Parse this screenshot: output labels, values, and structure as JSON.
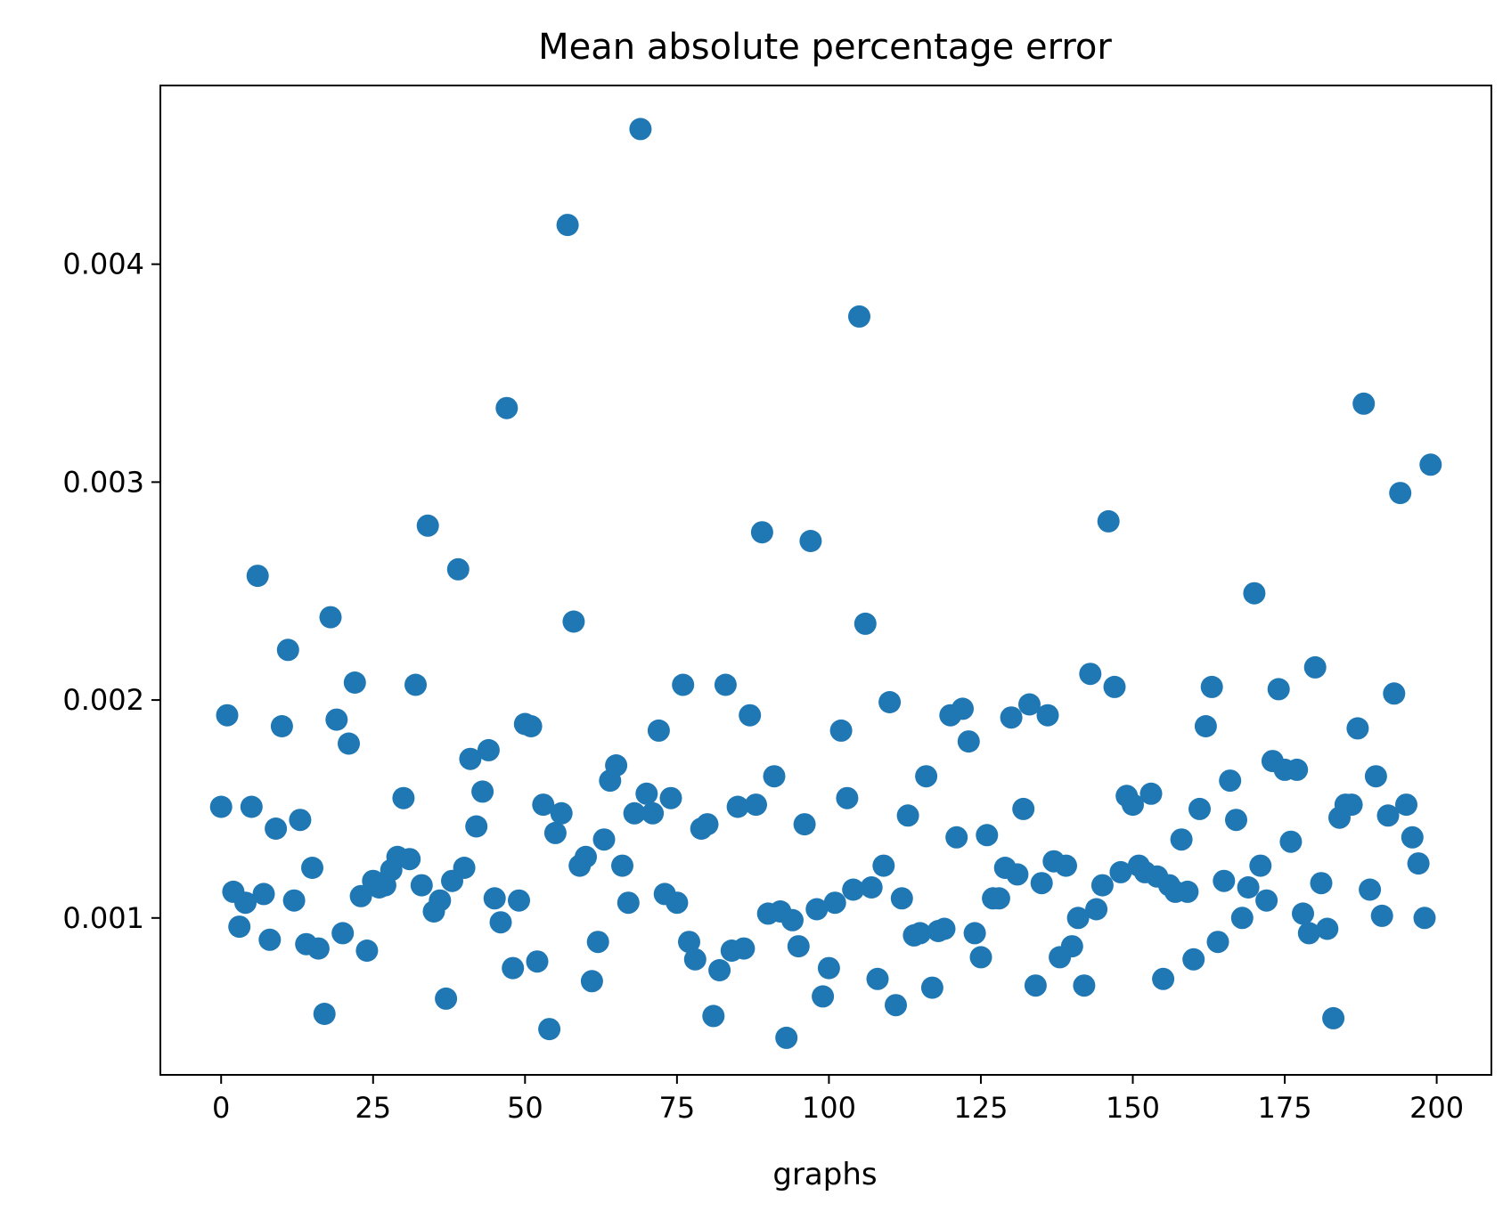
{
  "chart_data": {
    "type": "scatter",
    "title": "Mean absolute percentage error",
    "xlabel": "graphs",
    "ylabel": "",
    "xlim": [
      -10,
      209
    ],
    "ylim": [
      0.00028,
      0.00482
    ],
    "xticks": [
      0,
      25,
      50,
      75,
      100,
      125,
      150,
      175,
      200
    ],
    "xtick_labels": [
      "0",
      "25",
      "50",
      "75",
      "100",
      "125",
      "150",
      "175",
      "200"
    ],
    "yticks": [
      0.001,
      0.002,
      0.003,
      0.004
    ],
    "ytick_labels": [
      "0.001",
      "0.002",
      "0.003",
      "0.004"
    ],
    "grid": false,
    "color": "#1f77b4",
    "x": [
      0,
      1,
      2,
      3,
      4,
      5,
      6,
      7,
      8,
      9,
      10,
      11,
      12,
      13,
      14,
      15,
      16,
      17,
      18,
      19,
      20,
      21,
      22,
      23,
      24,
      25,
      26,
      27,
      28,
      29,
      30,
      31,
      32,
      33,
      34,
      35,
      36,
      37,
      38,
      39,
      40,
      41,
      42,
      43,
      44,
      45,
      46,
      47,
      48,
      49,
      50,
      51,
      52,
      53,
      54,
      55,
      56,
      57,
      58,
      59,
      60,
      61,
      62,
      63,
      64,
      65,
      66,
      67,
      68,
      69,
      70,
      71,
      72,
      73,
      74,
      75,
      76,
      77,
      78,
      79,
      80,
      81,
      82,
      83,
      84,
      85,
      86,
      87,
      88,
      89,
      90,
      91,
      92,
      93,
      94,
      95,
      96,
      97,
      98,
      99,
      100,
      101,
      102,
      103,
      104,
      105,
      106,
      107,
      108,
      109,
      110,
      111,
      112,
      113,
      114,
      115,
      116,
      117,
      118,
      119,
      120,
      121,
      122,
      123,
      124,
      125,
      126,
      127,
      128,
      129,
      130,
      131,
      132,
      133,
      134,
      135,
      136,
      137,
      138,
      139,
      140,
      141,
      142,
      143,
      144,
      145,
      146,
      147,
      148,
      149,
      150,
      151,
      152,
      153,
      154,
      155,
      156,
      157,
      158,
      159,
      160,
      161,
      162,
      163,
      164,
      165,
      166,
      167,
      168,
      169,
      170,
      171,
      172,
      173,
      174,
      175,
      176,
      177,
      178,
      179,
      180,
      181,
      182,
      183,
      184,
      185,
      186,
      187,
      188,
      189,
      190,
      191,
      192,
      193,
      194,
      195,
      196,
      197,
      198,
      199
    ],
    "y": [
      0.00151,
      0.00193,
      0.00112,
      0.00096,
      0.00107,
      0.00151,
      0.00257,
      0.00111,
      0.0009,
      0.00141,
      0.00188,
      0.00223,
      0.00108,
      0.00145,
      0.00088,
      0.00123,
      0.00086,
      0.00056,
      0.00238,
      0.00191,
      0.00093,
      0.0018,
      0.00208,
      0.0011,
      0.00085,
      0.00117,
      0.00114,
      0.00115,
      0.00122,
      0.00128,
      0.00155,
      0.00127,
      0.00207,
      0.00115,
      0.0028,
      0.00103,
      0.00108,
      0.00063,
      0.00117,
      0.0026,
      0.00123,
      0.00173,
      0.00142,
      0.00158,
      0.00177,
      0.00109,
      0.00098,
      0.00334,
      0.00077,
      0.00108,
      0.00189,
      0.00188,
      0.0008,
      0.00152,
      0.00049,
      0.00139,
      0.00148,
      0.00418,
      0.00236,
      0.00124,
      0.00128,
      0.00071,
      0.00089,
      0.00136,
      0.00163,
      0.0017,
      0.00124,
      0.00107,
      0.00148,
      0.00462,
      0.00157,
      0.00148,
      0.00186,
      0.00111,
      0.00155,
      0.00107,
      0.00207,
      0.00089,
      0.00081,
      0.00141,
      0.00143,
      0.00055,
      0.00076,
      0.00207,
      0.00085,
      0.00151,
      0.00086,
      0.00193,
      0.00152,
      0.00277,
      0.00102,
      0.00165,
      0.00103,
      0.00045,
      0.00099,
      0.00087,
      0.00143,
      0.00273,
      0.00104,
      0.00064,
      0.00077,
      0.00107,
      0.00186,
      0.00155,
      0.00113,
      0.00376,
      0.00235,
      0.00114,
      0.00072,
      0.00124,
      0.00199,
      0.0006,
      0.00109,
      0.00147,
      0.00092,
      0.00093,
      0.00165,
      0.00068,
      0.00094,
      0.00095,
      0.00193,
      0.00137,
      0.00196,
      0.00181,
      0.00093,
      0.00082,
      0.00138,
      0.00109,
      0.00109,
      0.00123,
      0.00192,
      0.0012,
      0.0015,
      0.00198,
      0.00069,
      0.00116,
      0.00193,
      0.00126,
      0.00082,
      0.00124,
      0.00087,
      0.001,
      0.00069,
      0.00212,
      0.00104,
      0.00115,
      0.00282,
      0.00206,
      0.00121,
      0.00156,
      0.00152,
      0.00124,
      0.00121,
      0.00157,
      0.00119,
      0.00072,
      0.00115,
      0.00112,
      0.00136,
      0.00112,
      0.00081,
      0.0015,
      0.00188,
      0.00206,
      0.00089,
      0.00117,
      0.00163,
      0.00145,
      0.001,
      0.00114,
      0.00249,
      0.00124,
      0.00108,
      0.00172,
      0.00205,
      0.00168,
      0.00135,
      0.00168,
      0.00102,
      0.00093,
      0.00215,
      0.00116,
      0.00095,
      0.00054,
      0.00146,
      0.00152,
      0.00152,
      0.00187,
      0.00336,
      0.00113,
      0.00165,
      0.00101,
      0.00147,
      0.00203,
      0.00295,
      0.00152,
      0.00137,
      0.00125,
      0.001,
      0.00308
    ]
  }
}
